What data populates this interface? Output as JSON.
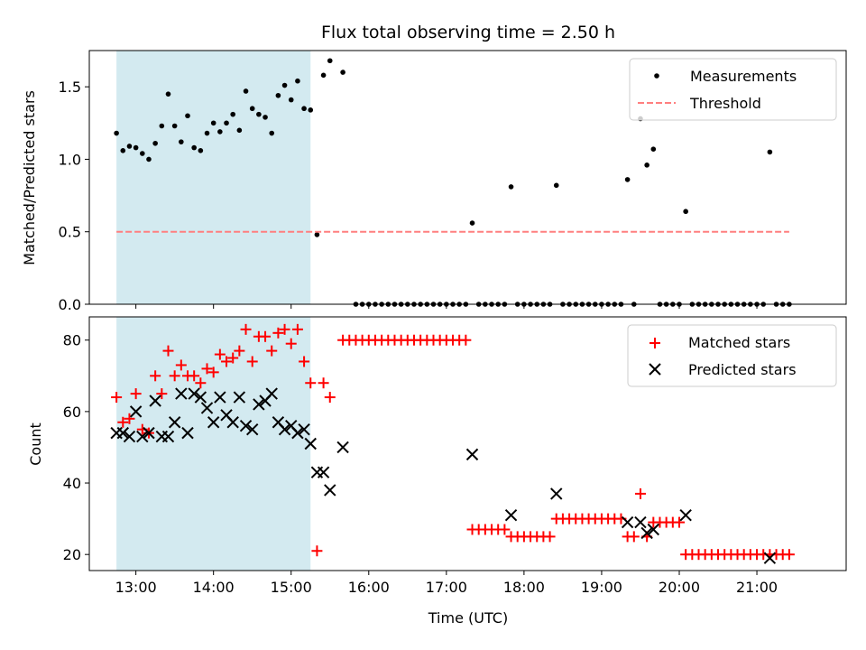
{
  "chart_data": [
    {
      "type": "scatter",
      "title": "Flux total observing time = 2.50 h",
      "ylabel": "Matched/Predicted stars",
      "xlabel": "",
      "ylim": [
        0.0,
        1.75
      ],
      "xlim_hours": [
        12.4,
        22.15
      ],
      "yticks": [
        0.0,
        0.5,
        1.0,
        1.5
      ],
      "ytick_labels": [
        "0.0",
        "0.5",
        "1.0",
        "1.5"
      ],
      "legend_position": "top-right",
      "shaded_region": {
        "start": "12:45",
        "end": "15:15",
        "color": "#d3eaf0"
      },
      "series": [
        {
          "name": "Measurements",
          "marker": "dot",
          "color": "#000000",
          "points": [
            [
              "12:45",
              1.18
            ],
            [
              "12:50",
              1.06
            ],
            [
              "12:55",
              1.09
            ],
            [
              "13:00",
              1.08
            ],
            [
              "13:05",
              1.04
            ],
            [
              "13:10",
              1.0
            ],
            [
              "13:15",
              1.11
            ],
            [
              "13:20",
              1.23
            ],
            [
              "13:25",
              1.45
            ],
            [
              "13:30",
              1.23
            ],
            [
              "13:35",
              1.12
            ],
            [
              "13:40",
              1.3
            ],
            [
              "13:45",
              1.08
            ],
            [
              "13:50",
              1.06
            ],
            [
              "13:55",
              1.18
            ],
            [
              "14:00",
              1.25
            ],
            [
              "14:05",
              1.19
            ],
            [
              "14:10",
              1.25
            ],
            [
              "14:15",
              1.31
            ],
            [
              "14:20",
              1.2
            ],
            [
              "14:25",
              1.47
            ],
            [
              "14:30",
              1.35
            ],
            [
              "14:35",
              1.31
            ],
            [
              "14:40",
              1.29
            ],
            [
              "14:45",
              1.18
            ],
            [
              "14:50",
              1.44
            ],
            [
              "14:55",
              1.51
            ],
            [
              "15:00",
              1.41
            ],
            [
              "15:05",
              1.54
            ],
            [
              "15:10",
              1.35
            ],
            [
              "15:15",
              1.34
            ],
            [
              "15:20",
              0.48
            ],
            [
              "15:25",
              1.58
            ],
            [
              "15:30",
              1.68
            ],
            [
              "15:40",
              1.6
            ],
            [
              "15:50",
              0.0
            ],
            [
              "15:55",
              0.0
            ],
            [
              "16:00",
              0.0
            ],
            [
              "16:05",
              0.0
            ],
            [
              "16:10",
              0.0
            ],
            [
              "16:15",
              0.0
            ],
            [
              "16:20",
              0.0
            ],
            [
              "16:25",
              0.0
            ],
            [
              "16:30",
              0.0
            ],
            [
              "16:35",
              0.0
            ],
            [
              "16:40",
              0.0
            ],
            [
              "16:45",
              0.0
            ],
            [
              "16:50",
              0.0
            ],
            [
              "16:55",
              0.0
            ],
            [
              "17:00",
              0.0
            ],
            [
              "17:05",
              0.0
            ],
            [
              "17:10",
              0.0
            ],
            [
              "17:15",
              0.0
            ],
            [
              "17:20",
              0.56
            ],
            [
              "17:25",
              0.0
            ],
            [
              "17:30",
              0.0
            ],
            [
              "17:35",
              0.0
            ],
            [
              "17:40",
              0.0
            ],
            [
              "17:45",
              0.0
            ],
            [
              "17:50",
              0.81
            ],
            [
              "17:55",
              0.0
            ],
            [
              "18:00",
              0.0
            ],
            [
              "18:05",
              0.0
            ],
            [
              "18:10",
              0.0
            ],
            [
              "18:15",
              0.0
            ],
            [
              "18:20",
              0.0
            ],
            [
              "18:25",
              0.82
            ],
            [
              "18:30",
              0.0
            ],
            [
              "18:35",
              0.0
            ],
            [
              "18:40",
              0.0
            ],
            [
              "18:45",
              0.0
            ],
            [
              "18:50",
              0.0
            ],
            [
              "18:55",
              0.0
            ],
            [
              "19:00",
              0.0
            ],
            [
              "19:05",
              0.0
            ],
            [
              "19:10",
              0.0
            ],
            [
              "19:15",
              0.0
            ],
            [
              "19:20",
              0.86
            ],
            [
              "19:25",
              0.0
            ],
            [
              "19:30",
              1.28
            ],
            [
              "19:35",
              0.96
            ],
            [
              "19:40",
              1.07
            ],
            [
              "19:45",
              0.0
            ],
            [
              "19:50",
              0.0
            ],
            [
              "19:55",
              0.0
            ],
            [
              "20:00",
              0.0
            ],
            [
              "20:05",
              0.64
            ],
            [
              "20:10",
              0.0
            ],
            [
              "20:15",
              0.0
            ],
            [
              "20:20",
              0.0
            ],
            [
              "20:25",
              0.0
            ],
            [
              "20:30",
              0.0
            ],
            [
              "20:35",
              0.0
            ],
            [
              "20:40",
              0.0
            ],
            [
              "20:45",
              0.0
            ],
            [
              "20:50",
              0.0
            ],
            [
              "20:55",
              0.0
            ],
            [
              "21:00",
              0.0
            ],
            [
              "21:05",
              0.0
            ],
            [
              "21:10",
              1.05
            ],
            [
              "21:15",
              0.0
            ],
            [
              "21:20",
              0.0
            ],
            [
              "21:25",
              0.0
            ]
          ]
        },
        {
          "name": "Threshold",
          "marker": "dashed-line",
          "color": "#ff7f7f",
          "points": [
            [
              "12:45",
              0.5
            ],
            [
              "21:25",
              0.5
            ]
          ]
        }
      ]
    },
    {
      "type": "scatter",
      "title": "",
      "ylabel": "Count",
      "xlabel": "Time (UTC)",
      "ylim": [
        15.5,
        86.5
      ],
      "xlim_hours": [
        12.4,
        22.15
      ],
      "yticks": [
        20,
        40,
        60,
        80
      ],
      "ytick_labels": [
        "20",
        "40",
        "60",
        "80"
      ],
      "xticks_hours": [
        13,
        14,
        15,
        16,
        17,
        18,
        19,
        20,
        21
      ],
      "xtick_labels": [
        "13:00",
        "14:00",
        "15:00",
        "16:00",
        "17:00",
        "18:00",
        "19:00",
        "20:00",
        "21:00"
      ],
      "legend_position": "top-right",
      "shaded_region": {
        "start": "12:45",
        "end": "15:15",
        "color": "#d3eaf0"
      },
      "series": [
        {
          "name": "Matched stars",
          "marker": "plus",
          "color": "#ff0000",
          "points": [
            [
              "12:45",
              64
            ],
            [
              "12:50",
              57
            ],
            [
              "12:55",
              58
            ],
            [
              "13:00",
              65
            ],
            [
              "13:05",
              55
            ],
            [
              "13:10",
              54
            ],
            [
              "13:15",
              70
            ],
            [
              "13:20",
              65
            ],
            [
              "13:25",
              77
            ],
            [
              "13:30",
              70
            ],
            [
              "13:35",
              73
            ],
            [
              "13:40",
              70
            ],
            [
              "13:45",
              70
            ],
            [
              "13:50",
              68
            ],
            [
              "13:55",
              72
            ],
            [
              "14:00",
              71
            ],
            [
              "14:05",
              76
            ],
            [
              "14:10",
              74
            ],
            [
              "14:15",
              75
            ],
            [
              "14:20",
              77
            ],
            [
              "14:25",
              83
            ],
            [
              "14:30",
              74
            ],
            [
              "14:35",
              81
            ],
            [
              "14:40",
              81
            ],
            [
              "14:45",
              77
            ],
            [
              "14:50",
              82
            ],
            [
              "14:55",
              83
            ],
            [
              "15:00",
              79
            ],
            [
              "15:05",
              83
            ],
            [
              "15:10",
              74
            ],
            [
              "15:15",
              68
            ],
            [
              "15:20",
              21
            ],
            [
              "15:25",
              68
            ],
            [
              "15:30",
              64
            ],
            [
              "15:40",
              80
            ],
            [
              "15:45",
              80
            ],
            [
              "15:50",
              80
            ],
            [
              "15:55",
              80
            ],
            [
              "16:00",
              80
            ],
            [
              "16:05",
              80
            ],
            [
              "16:10",
              80
            ],
            [
              "16:15",
              80
            ],
            [
              "16:20",
              80
            ],
            [
              "16:25",
              80
            ],
            [
              "16:30",
              80
            ],
            [
              "16:35",
              80
            ],
            [
              "16:40",
              80
            ],
            [
              "16:45",
              80
            ],
            [
              "16:50",
              80
            ],
            [
              "16:55",
              80
            ],
            [
              "17:00",
              80
            ],
            [
              "17:05",
              80
            ],
            [
              "17:10",
              80
            ],
            [
              "17:15",
              80
            ],
            [
              "17:20",
              27
            ],
            [
              "17:25",
              27
            ],
            [
              "17:30",
              27
            ],
            [
              "17:35",
              27
            ],
            [
              "17:40",
              27
            ],
            [
              "17:45",
              27
            ],
            [
              "17:50",
              25
            ],
            [
              "17:55",
              25
            ],
            [
              "18:00",
              25
            ],
            [
              "18:05",
              25
            ],
            [
              "18:10",
              25
            ],
            [
              "18:15",
              25
            ],
            [
              "18:20",
              25
            ],
            [
              "18:25",
              30
            ],
            [
              "18:30",
              30
            ],
            [
              "18:35",
              30
            ],
            [
              "18:40",
              30
            ],
            [
              "18:45",
              30
            ],
            [
              "18:50",
              30
            ],
            [
              "18:55",
              30
            ],
            [
              "19:00",
              30
            ],
            [
              "19:05",
              30
            ],
            [
              "19:10",
              30
            ],
            [
              "19:15",
              30
            ],
            [
              "19:20",
              25
            ],
            [
              "19:25",
              25
            ],
            [
              "19:30",
              37
            ],
            [
              "19:35",
              25
            ],
            [
              "19:40",
              29
            ],
            [
              "19:45",
              29
            ],
            [
              "19:50",
              29
            ],
            [
              "19:55",
              29
            ],
            [
              "20:00",
              29
            ],
            [
              "20:05",
              20
            ],
            [
              "20:10",
              20
            ],
            [
              "20:15",
              20
            ],
            [
              "20:20",
              20
            ],
            [
              "20:25",
              20
            ],
            [
              "20:30",
              20
            ],
            [
              "20:35",
              20
            ],
            [
              "20:40",
              20
            ],
            [
              "20:45",
              20
            ],
            [
              "20:50",
              20
            ],
            [
              "20:55",
              20
            ],
            [
              "21:00",
              20
            ],
            [
              "21:05",
              20
            ],
            [
              "21:10",
              20
            ],
            [
              "21:15",
              20
            ],
            [
              "21:20",
              20
            ],
            [
              "21:25",
              20
            ]
          ]
        },
        {
          "name": "Predicted stars",
          "marker": "x",
          "color": "#000000",
          "points": [
            [
              "12:45",
              54
            ],
            [
              "12:50",
              54
            ],
            [
              "12:55",
              53
            ],
            [
              "13:00",
              60
            ],
            [
              "13:05",
              53
            ],
            [
              "13:10",
              54
            ],
            [
              "13:15",
              63
            ],
            [
              "13:20",
              53
            ],
            [
              "13:25",
              53
            ],
            [
              "13:30",
              57
            ],
            [
              "13:35",
              65
            ],
            [
              "13:40",
              54
            ],
            [
              "13:45",
              65
            ],
            [
              "13:50",
              64
            ],
            [
              "13:55",
              61
            ],
            [
              "14:00",
              57
            ],
            [
              "14:05",
              64
            ],
            [
              "14:10",
              59
            ],
            [
              "14:15",
              57
            ],
            [
              "14:20",
              64
            ],
            [
              "14:25",
              56
            ],
            [
              "14:30",
              55
            ],
            [
              "14:35",
              62
            ],
            [
              "14:40",
              63
            ],
            [
              "14:45",
              65
            ],
            [
              "14:50",
              57
            ],
            [
              "14:55",
              55
            ],
            [
              "15:00",
              56
            ],
            [
              "15:05",
              54
            ],
            [
              "15:10",
              55
            ],
            [
              "15:15",
              51
            ],
            [
              "15:20",
              43
            ],
            [
              "15:25",
              43
            ],
            [
              "15:30",
              38
            ],
            [
              "15:40",
              50
            ],
            [
              "17:20",
              48
            ],
            [
              "17:50",
              31
            ],
            [
              "18:25",
              37
            ],
            [
              "19:20",
              29
            ],
            [
              "19:30",
              29
            ],
            [
              "19:35",
              26
            ],
            [
              "19:40",
              27
            ],
            [
              "20:05",
              31
            ],
            [
              "21:10",
              19
            ]
          ]
        }
      ]
    }
  ]
}
